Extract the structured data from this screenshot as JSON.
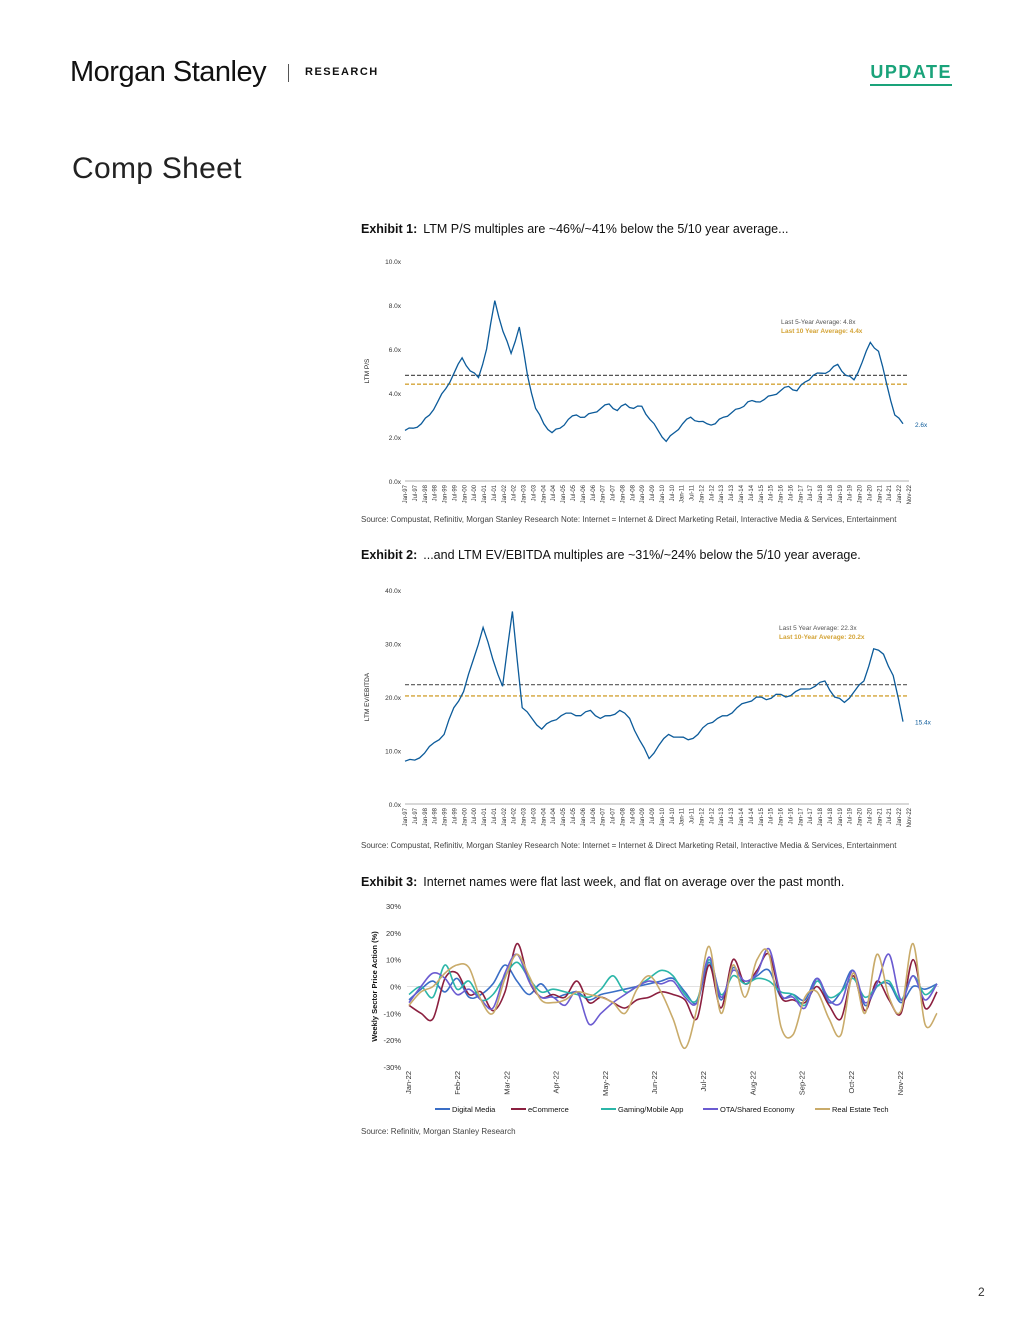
{
  "header": {
    "brand": "Morgan Stanley",
    "section": "RESEARCH",
    "tag": "UPDATE"
  },
  "page_title": "Comp Sheet",
  "exhibits": [
    {
      "label": "Exhibit 1:",
      "title": "LTM P/S multiples are ~46%/~41% below the 5/10 year average...",
      "source": "Source: Compustat, Refinitiv, Morgan Stanley Research Note: Internet = Internet & Direct Marketing Retail, Interactive Media & Services, Entertainment"
    },
    {
      "label": "Exhibit 2:",
      "title": "...and LTM EV/EBITDA multiples are ~31%/~24% below the 5/10 year average.",
      "source": "Source: Compustat, Refinitiv, Morgan Stanley Research Note: Internet = Internet & Direct Marketing Retail, Interactive Media & Services, Entertainment"
    },
    {
      "label": "Exhibit 3:",
      "title": "Internet names were flat last week, and flat on average over the past month.",
      "source": "Source: Refinitiv, Morgan Stanley Research"
    }
  ],
  "page_number": "2",
  "colors": {
    "accent": "#1aa37a",
    "series_blue": "#0c5b9a",
    "avg_gray": "#555555",
    "avg_gold": "#d4a437"
  },
  "chart_data": [
    {
      "type": "line",
      "ylabel": "LTM P/S",
      "ylim": [
        0,
        10
      ],
      "yticks": [
        "0.0x",
        "2.0x",
        "4.0x",
        "6.0x",
        "8.0x",
        "10.0x"
      ],
      "xticks": [
        "Jan-97",
        "Jul-97",
        "Jan-98",
        "Jul-98",
        "Jan-99",
        "Jul-99",
        "Jan-00",
        "Jul-00",
        "Jan-01",
        "Jul-01",
        "Jan-02",
        "Jul-02",
        "Jan-03",
        "Jul-03",
        "Jan-04",
        "Jul-04",
        "Jan-05",
        "Jul-05",
        "Jan-06",
        "Jul-06",
        "Jan-07",
        "Jul-07",
        "Jan-08",
        "Jul-08",
        "Jan-09",
        "Jul-09",
        "Jan-10",
        "Jul-10",
        "Jan-11",
        "Jul-11",
        "Jan-12",
        "Jul-12",
        "Jan-13",
        "Jul-13",
        "Jan-14",
        "Jul-14",
        "Jan-15",
        "Jul-15",
        "Jan-16",
        "Jul-16",
        "Jan-17",
        "Jul-17",
        "Jan-18",
        "Jul-18",
        "Jan-19",
        "Jul-19",
        "Jan-20",
        "Jul-20",
        "Jan-21",
        "Jul-21",
        "Jan-22",
        "Nov-22"
      ],
      "series": [
        {
          "values": [
            2.3,
            2.4,
            2.6,
            3.0,
            3.6,
            4.2,
            4.9,
            5.6,
            5.0,
            4.7,
            6.0,
            8.2,
            6.8,
            5.8,
            7.0,
            4.8,
            3.3,
            2.6,
            2.2,
            2.4,
            2.8,
            3.0,
            2.9,
            3.1,
            3.3,
            3.5,
            3.2,
            3.5,
            3.3,
            3.4,
            2.8,
            2.3,
            1.8,
            2.2,
            2.6,
            2.9,
            2.7,
            2.6,
            2.6,
            2.9,
            3.1,
            3.3,
            3.6,
            3.6,
            3.7,
            3.9,
            4.1,
            4.3,
            4.1,
            4.5,
            4.8,
            4.9,
            5.0,
            5.3,
            4.8,
            4.6,
            5.4,
            6.3,
            5.9,
            4.4,
            3.0,
            2.6
          ]
        }
      ],
      "annotations": [
        {
          "text": "Last 5-Year Average: 4.8x",
          "value": 4.8,
          "color": "#555555"
        },
        {
          "text": "Last 10 Year Average: 4.4x",
          "value": 4.4,
          "color": "#d4a437"
        },
        {
          "text": "2.6x",
          "value": 2.6,
          "color": "#0c5b9a"
        }
      ]
    },
    {
      "type": "line",
      "ylabel": "LTM EV/EBITDA",
      "ylim": [
        0,
        40
      ],
      "yticks": [
        "0.0x",
        "10.0x",
        "20.0x",
        "30.0x",
        "40.0x"
      ],
      "xticks": [
        "Jan-97",
        "Jul-97",
        "Jan-98",
        "Jul-98",
        "Jan-99",
        "Jul-99",
        "Jan-00",
        "Jul-00",
        "Jan-01",
        "Jul-01",
        "Jan-02",
        "Jul-02",
        "Jan-03",
        "Jul-03",
        "Jan-04",
        "Jul-04",
        "Jan-05",
        "Jul-05",
        "Jan-06",
        "Jul-06",
        "Jan-07",
        "Jul-07",
        "Jan-08",
        "Jul-08",
        "Jan-09",
        "Jul-09",
        "Jan-10",
        "Jul-10",
        "Jan-11",
        "Jul-11",
        "Jan-12",
        "Jul-12",
        "Jan-13",
        "Jul-13",
        "Jan-14",
        "Jul-14",
        "Jan-15",
        "Jul-15",
        "Jan-16",
        "Jul-16",
        "Jan-17",
        "Jul-17",
        "Jan-18",
        "Jul-18",
        "Jan-19",
        "Jul-19",
        "Jan-20",
        "Jul-20",
        "Jan-21",
        "Jul-21",
        "Jan-22",
        "Nov-22"
      ],
      "series": [
        {
          "values": [
            8.0,
            8.2,
            9.5,
            11.5,
            13.0,
            18.0,
            21.0,
            27.0,
            33.0,
            27.0,
            22.0,
            36.0,
            18.0,
            16.0,
            14.0,
            15.5,
            16.5,
            17.0,
            16.5,
            17.5,
            16.0,
            16.5,
            17.5,
            16.0,
            12.0,
            8.5,
            11.0,
            13.0,
            12.5,
            12.0,
            13.0,
            15.0,
            16.0,
            16.5,
            18.0,
            19.0,
            20.0,
            19.5,
            20.5,
            20.0,
            21.0,
            21.5,
            22.0,
            23.0,
            20.0,
            19.0,
            21.0,
            23.0,
            29.0,
            28.0,
            24.0,
            15.4
          ]
        }
      ],
      "annotations": [
        {
          "text": "Last 5 Year Average: 22.3x",
          "value": 22.3,
          "color": "#555555"
        },
        {
          "text": "Last 10-Year Average: 20.2x",
          "value": 20.2,
          "color": "#d4a437"
        },
        {
          "text": "15.4x",
          "value": 15.4,
          "color": "#0c5b9a"
        }
      ]
    },
    {
      "type": "line",
      "ylabel": "Weekly Sector Price Action (%)",
      "ylim": [
        -30,
        30
      ],
      "yticks": [
        "-30%",
        "-20%",
        "-10%",
        "0%",
        "10%",
        "20%",
        "30%"
      ],
      "xticks": [
        "Jan-22",
        "Feb-22",
        "Mar-22",
        "Apr-22",
        "May-22",
        "Jun-22",
        "Jul-22",
        "Aug-22",
        "Sep-22",
        "Oct-22",
        "Nov-22"
      ],
      "series": [
        {
          "name": "Digital Media",
          "color": "#3a6ec6",
          "values": [
            -5,
            -1,
            2,
            -2,
            3,
            -4,
            -3,
            1,
            8,
            2,
            -3,
            1,
            -4,
            -3,
            -2,
            -5,
            -3,
            -2,
            -1,
            0,
            1,
            2,
            3,
            -2,
            -6,
            9,
            -5,
            7,
            1,
            4,
            6,
            -4,
            -3,
            -5,
            3,
            -6,
            -2,
            6,
            -7,
            0,
            1,
            -6,
            0,
            -1,
            1
          ]
        },
        {
          "name": "eCommerce",
          "color": "#8b1f3f",
          "values": [
            -7,
            -10,
            -12,
            3,
            5,
            -3,
            -2,
            -9,
            -2,
            16,
            2,
            -4,
            -3,
            -4,
            2,
            -6,
            -4,
            -6,
            -8,
            -5,
            -4,
            -2,
            -3,
            -5,
            -12,
            8,
            -8,
            10,
            1,
            6,
            12,
            -4,
            -5,
            -6,
            0,
            -7,
            -12,
            4,
            -9,
            2,
            -5,
            -10,
            10,
            -8,
            -2
          ]
        },
        {
          "name": "Gaming/Mobile App",
          "color": "#2bb6a8",
          "values": [
            -3,
            0,
            -4,
            8,
            -1,
            2,
            -5,
            -3,
            4,
            9,
            3,
            -2,
            -1,
            -2,
            -3,
            -4,
            -1,
            4,
            -2,
            0,
            3,
            6,
            4,
            -3,
            -5,
            10,
            -3,
            4,
            1,
            3,
            2,
            -2,
            -3,
            -7,
            2,
            -4,
            -2,
            3,
            -4,
            0,
            2,
            -5,
            4,
            -3,
            1
          ]
        },
        {
          "name": "OTA/Shared Economy",
          "color": "#6b5bd1",
          "values": [
            -6,
            0,
            5,
            3,
            -3,
            -1,
            -5,
            -8,
            5,
            12,
            2,
            -4,
            -4,
            -7,
            -2,
            -14,
            -10,
            -6,
            -3,
            0,
            2,
            1,
            2,
            -4,
            -6,
            11,
            -4,
            6,
            2,
            5,
            14,
            -3,
            -4,
            -8,
            3,
            -5,
            -6,
            6,
            -6,
            1,
            12,
            -5,
            4,
            -5,
            1
          ]
        },
        {
          "name": "Real Estate Tech",
          "color": "#c9ab6a",
          "values": [
            -7,
            -2,
            0,
            5,
            8,
            7,
            -5,
            -10,
            3,
            12,
            4,
            -5,
            -6,
            -5,
            -2,
            -3,
            -4,
            -6,
            -10,
            -1,
            4,
            -2,
            -12,
            -23,
            -8,
            15,
            -10,
            8,
            -4,
            10,
            12,
            -15,
            -18,
            -4,
            -2,
            -12,
            -18,
            5,
            -10,
            12,
            -4,
            -9,
            16,
            -14,
            -10
          ]
        }
      ]
    }
  ]
}
